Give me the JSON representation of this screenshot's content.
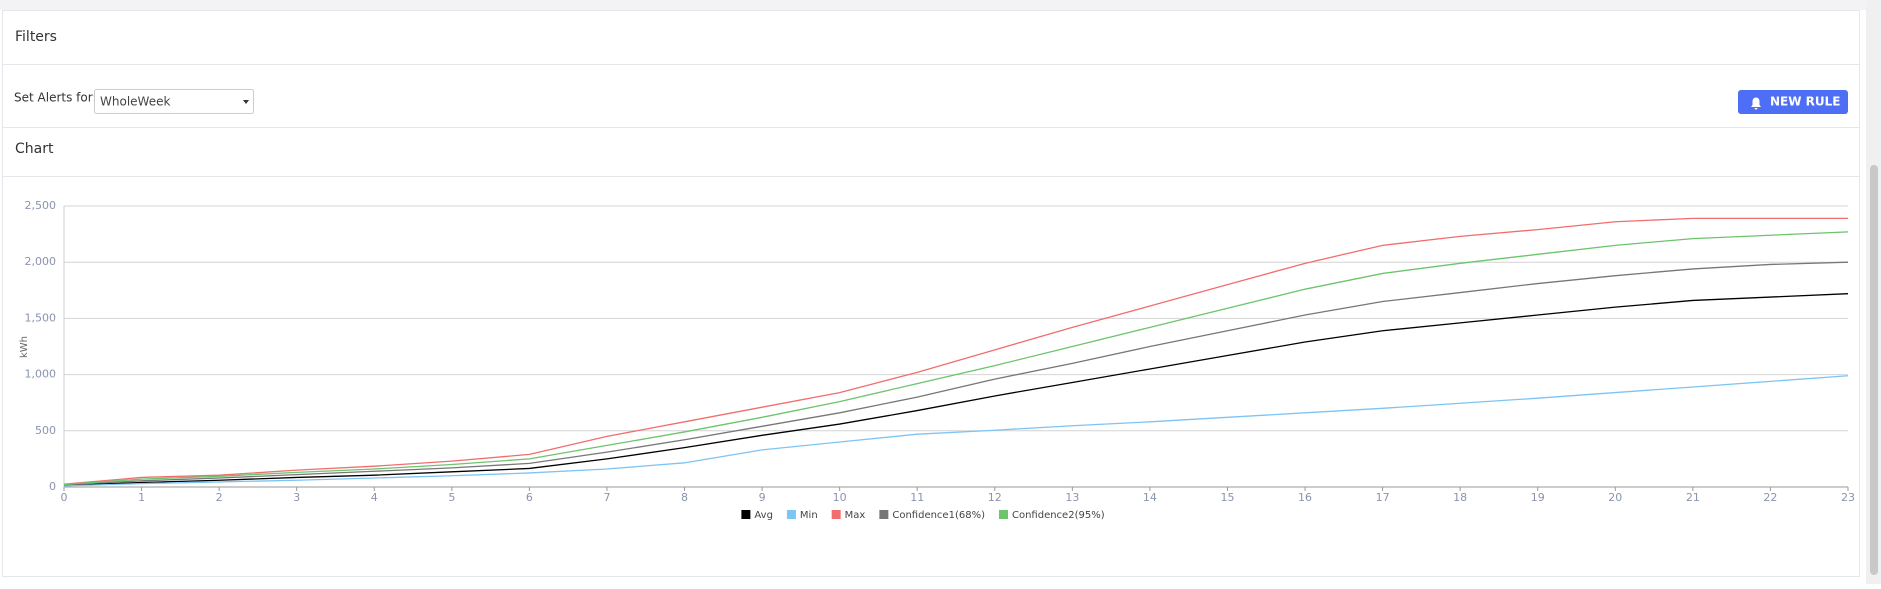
{
  "filters_title": "Filters",
  "alerts": {
    "label": "Set Alerts for:",
    "selected": "WholeWeek",
    "button": "NEW RULE"
  },
  "chart_section_title": "Chart",
  "chart_data": {
    "type": "line",
    "y_label": "kWh",
    "x": [
      0,
      1,
      2,
      3,
      4,
      5,
      6,
      7,
      8,
      9,
      10,
      11,
      12,
      13,
      14,
      15,
      16,
      17,
      18,
      19,
      20,
      21,
      22,
      23
    ],
    "xlim": [
      0,
      23
    ],
    "xticks": [
      0,
      1,
      2,
      3,
      4,
      5,
      6,
      7,
      8,
      9,
      10,
      11,
      12,
      13,
      14,
      15,
      16,
      17,
      18,
      19,
      20,
      21,
      22,
      23
    ],
    "ylim": [
      0,
      2500
    ],
    "yticks": [
      0,
      500,
      {
        "value": 1000,
        "label": "1,000"
      },
      {
        "value": 1500,
        "label": "1,500"
      },
      {
        "value": 2000,
        "label": "2,000"
      },
      {
        "value": 2500,
        "label": "2,500"
      }
    ],
    "grid": true,
    "series": [
      {
        "name": "Avg",
        "color": "#000000",
        "values": [
          15,
          40,
          60,
          85,
          105,
          135,
          165,
          250,
          350,
          460,
          560,
          680,
          810,
          930,
          1050,
          1170,
          1290,
          1390,
          1460,
          1530,
          1600,
          1660,
          1690,
          1720
        ]
      },
      {
        "name": "Min",
        "color": "#7cc4f4",
        "values": [
          10,
          30,
          45,
          60,
          80,
          100,
          125,
          160,
          215,
          330,
          400,
          470,
          505,
          545,
          580,
          620,
          660,
          700,
          745,
          790,
          840,
          890,
          940,
          990
        ]
      },
      {
        "name": "Max",
        "color": "#f26d6d",
        "values": [
          25,
          85,
          105,
          150,
          185,
          230,
          290,
          450,
          580,
          710,
          840,
          1020,
          1220,
          1420,
          1610,
          1800,
          1990,
          2150,
          2230,
          2290,
          2360,
          2390,
          2390,
          2390
        ]
      },
      {
        "name": "Confidence1(68%)",
        "color": "#777777",
        "values": [
          20,
          55,
          80,
          110,
          140,
          170,
          210,
          310,
          420,
          540,
          660,
          800,
          960,
          1100,
          1250,
          1390,
          1530,
          1650,
          1730,
          1810,
          1880,
          1940,
          1980,
          2000
        ]
      },
      {
        "name": "Confidence2(95%)",
        "color": "#6cc46c",
        "values": [
          22,
          70,
          95,
          130,
          160,
          200,
          250,
          370,
          490,
          620,
          760,
          920,
          1080,
          1250,
          1420,
          1590,
          1760,
          1900,
          1990,
          2070,
          2150,
          2210,
          2240,
          2270
        ]
      }
    ]
  }
}
